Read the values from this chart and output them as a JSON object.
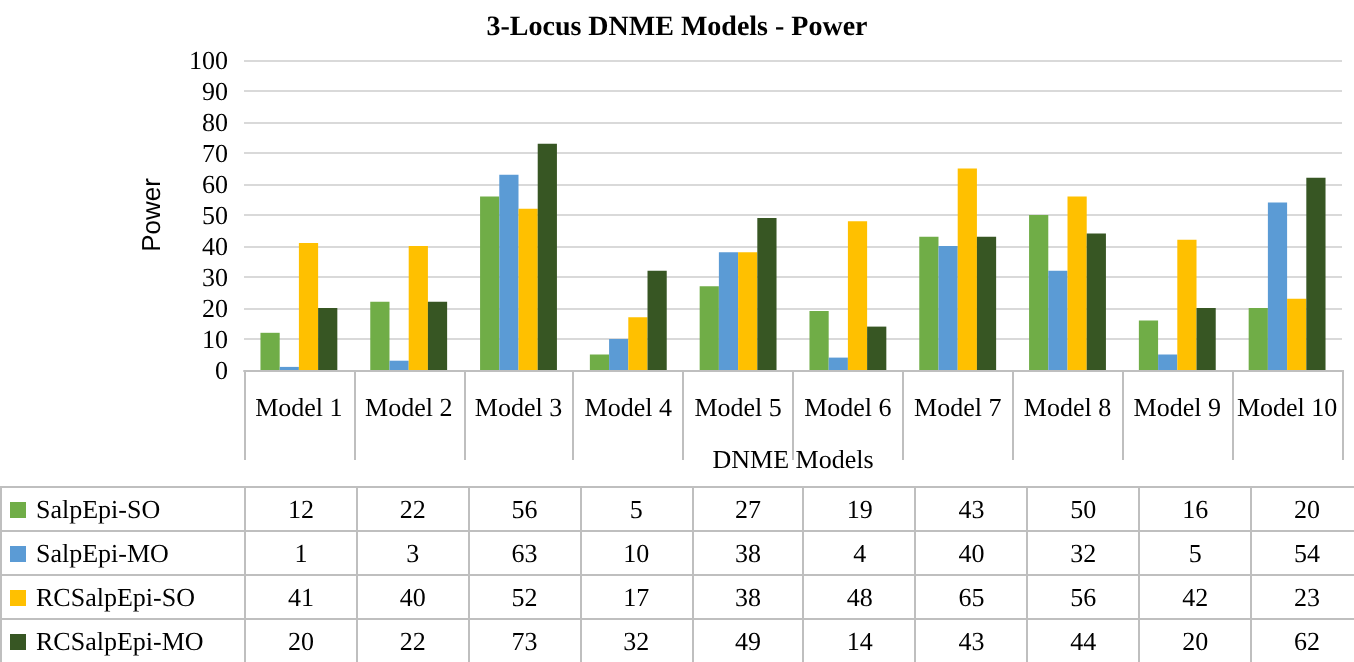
{
  "chart_data": {
    "type": "bar",
    "title": "3-Locus DNME Models - Power",
    "xlabel": "DNME Models",
    "ylabel": "Power",
    "categories": [
      "Model 1",
      "Model 2",
      "Model 3",
      "Model 4",
      "Model 5",
      "Model 6",
      "Model 7",
      "Model 8",
      "Model 9",
      "Model 10"
    ],
    "series": [
      {
        "name": "SalpEpi-SO",
        "color": "#70ad47",
        "values": [
          12,
          22,
          56,
          5,
          27,
          19,
          43,
          50,
          16,
          20
        ]
      },
      {
        "name": "SalpEpi-MO",
        "color": "#5b9bd5",
        "values": [
          1,
          3,
          63,
          10,
          38,
          4,
          40,
          32,
          5,
          54
        ]
      },
      {
        "name": "RCSalpEpi-SO",
        "color": "#ffc000",
        "values": [
          41,
          40,
          52,
          17,
          38,
          48,
          65,
          56,
          42,
          23
        ]
      },
      {
        "name": "RCSalpEpi-MO",
        "color": "#375623",
        "values": [
          20,
          22,
          73,
          32,
          49,
          14,
          43,
          44,
          20,
          62
        ]
      }
    ],
    "ylim": [
      0,
      100
    ],
    "yticks": [
      0,
      10,
      20,
      30,
      40,
      50,
      60,
      70,
      80,
      90,
      100
    ],
    "grid": "y",
    "data_labels": true,
    "legend": "bottom"
  }
}
